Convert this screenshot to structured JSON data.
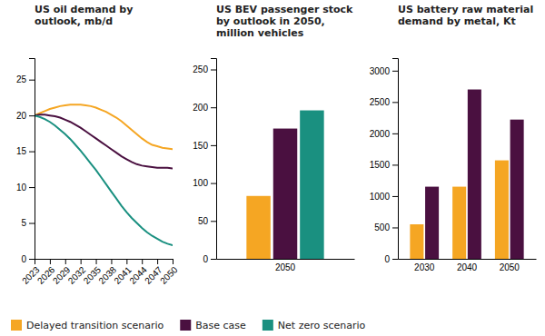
{
  "chart_data": [
    {
      "type": "line",
      "title": "US oil demand by\noutlook, mb/d",
      "x": [
        2023,
        2024,
        2025,
        2026,
        2027,
        2028,
        2029,
        2030,
        2031,
        2032,
        2033,
        2034,
        2035,
        2036,
        2037,
        2038,
        2039,
        2040,
        2041,
        2042,
        2043,
        2044,
        2045,
        2046,
        2047,
        2048,
        2049,
        2050
      ],
      "series": [
        {
          "name": "Delayed transition scenario",
          "color": "#F5A623",
          "values": [
            20.0,
            20.3,
            20.6,
            20.9,
            21.1,
            21.3,
            21.4,
            21.5,
            21.5,
            21.5,
            21.4,
            21.3,
            21.1,
            20.8,
            20.5,
            20.1,
            19.7,
            19.2,
            18.6,
            18.0,
            17.4,
            16.8,
            16.3,
            15.9,
            15.7,
            15.5,
            15.4,
            15.3
          ]
        },
        {
          "name": "Base case",
          "color": "#4A1040",
          "values": [
            20.0,
            20.1,
            20.1,
            20.0,
            19.9,
            19.7,
            19.4,
            19.1,
            18.7,
            18.3,
            17.8,
            17.3,
            16.8,
            16.3,
            15.8,
            15.3,
            14.8,
            14.3,
            13.9,
            13.5,
            13.2,
            13.0,
            12.9,
            12.8,
            12.7,
            12.7,
            12.7,
            12.6
          ]
        },
        {
          "name": "Net zero scenario",
          "color": "#1A9080",
          "values": [
            20.0,
            19.8,
            19.5,
            19.1,
            18.6,
            18.0,
            17.4,
            16.7,
            15.9,
            15.1,
            14.2,
            13.3,
            12.4,
            11.4,
            10.4,
            9.4,
            8.4,
            7.4,
            6.5,
            5.7,
            5.0,
            4.3,
            3.7,
            3.2,
            2.8,
            2.4,
            2.1,
            1.9
          ]
        }
      ],
      "xlim": [
        2023,
        2050
      ],
      "xticks": [
        2023,
        2026,
        2029,
        2032,
        2035,
        2038,
        2041,
        2044,
        2047,
        2050
      ],
      "ylim": [
        0,
        28
      ],
      "yticks": [
        0,
        5,
        10,
        15,
        20,
        25
      ],
      "grid": false,
      "legend": "lower left"
    },
    {
      "type": "bar",
      "title": "US BEV passenger stock\nby outlook in 2050,\nmillion vehicles",
      "categories": [
        "2050"
      ],
      "series": [
        {
          "color": "#F5A623",
          "values": [
            83
          ]
        },
        {
          "color": "#4A1040",
          "values": [
            172
          ]
        },
        {
          "color": "#1A9080",
          "values": [
            196
          ]
        }
      ],
      "ylim": [
        0,
        265
      ],
      "yticks": [
        0,
        50,
        100,
        150,
        200,
        250
      ],
      "grid": false
    },
    {
      "type": "bar",
      "title": "US battery raw material\ndemand by metal, Kt",
      "categories": [
        "2030",
        "2040",
        "2050"
      ],
      "series": [
        {
          "color": "#F5A623",
          "values": [
            550,
            1150,
            1570
          ]
        },
        {
          "color": "#4A1040",
          "values": [
            1150,
            2700,
            2220
          ]
        }
      ],
      "ylim": [
        0,
        3200
      ],
      "yticks": [
        0,
        500,
        1000,
        1500,
        2000,
        2500,
        3000
      ],
      "grid": false
    }
  ]
}
